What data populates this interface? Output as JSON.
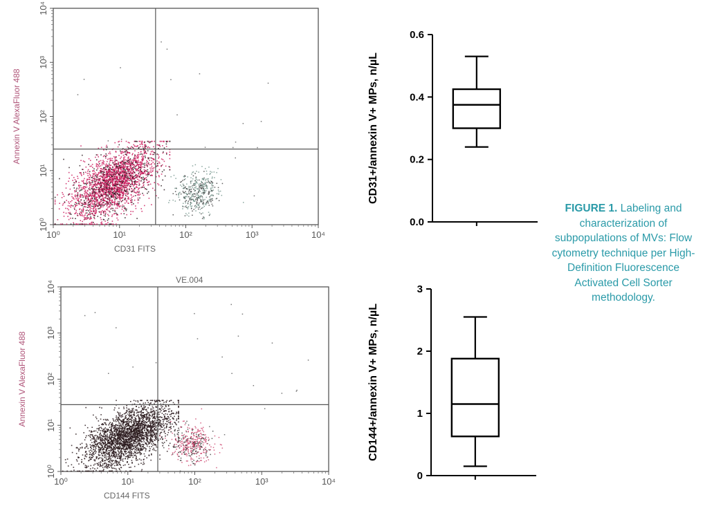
{
  "caption": {
    "label": "FIGURE 1.",
    "text": "Labeling and characterization of subpopulations of MVs: Flow cytometry technique per High-Definition Fluorescence Activated Cell Sorter methodology."
  },
  "chart_data": [
    {
      "type": "scatter",
      "xlabel": "CD31 FITS",
      "ylabel": "Annexin V AlexaFluor 488",
      "title": "",
      "x_scale": "log",
      "y_scale": "log",
      "xlim": [
        1,
        10000
      ],
      "ylim": [
        1,
        10000
      ],
      "x_tick_labels": [
        "10⁰",
        "10¹",
        "10²",
        "10³",
        "10⁴"
      ],
      "y_tick_labels": [
        "10⁰",
        "10¹",
        "10²",
        "10³",
        "10⁴"
      ],
      "quadrant_gates": {
        "x": 35,
        "y": 25
      },
      "populations": [
        {
          "name": "",
          "color": "#cc1f5f",
          "center": [
            8,
            6
          ]
        },
        {
          "name": "",
          "color": "#6a8e84",
          "center": [
            150,
            4
          ]
        }
      ]
    },
    {
      "type": "box",
      "ylabel": "CD31+/annexin V+ MPs, n/µL",
      "ylim": [
        0,
        0.6
      ],
      "y_ticks": [
        0.0,
        0.2,
        0.4,
        0.6
      ],
      "y_tick_labels": [
        "0.0",
        "0.2",
        "0.4",
        "0.6"
      ],
      "box": {
        "min": 0.24,
        "q1": 0.3,
        "median": 0.375,
        "q3": 0.425,
        "max": 0.53
      }
    },
    {
      "type": "scatter",
      "title": "VE.004",
      "xlabel": "CD144 FITS",
      "ylabel": "Annexin V AlexaFluor 488",
      "x_scale": "log",
      "y_scale": "log",
      "xlim": [
        1,
        10000
      ],
      "ylim": [
        1,
        10000
      ],
      "x_tick_labels": [
        "10⁰",
        "10¹",
        "10²",
        "10³",
        "10⁴"
      ],
      "y_tick_labels": [
        "10⁰",
        "10¹",
        "10²",
        "10³",
        "10⁴"
      ],
      "quadrant_gates": {
        "x": 28,
        "y": 28
      },
      "populations": [
        {
          "name": "",
          "color": "#2a1c1c",
          "center": [
            10,
            6
          ]
        },
        {
          "name": "",
          "color": "#cc3d68",
          "center": [
            90,
            4
          ]
        }
      ]
    },
    {
      "type": "box",
      "ylabel": "CD144+/annexin V+ MPs, n/µL",
      "ylim": [
        0,
        3
      ],
      "y_ticks": [
        0,
        1,
        2,
        3
      ],
      "y_tick_labels": [
        "0",
        "1",
        "2",
        "3"
      ],
      "box": {
        "min": 0.15,
        "q1": 0.63,
        "median": 1.15,
        "q3": 1.88,
        "max": 2.55
      }
    }
  ]
}
